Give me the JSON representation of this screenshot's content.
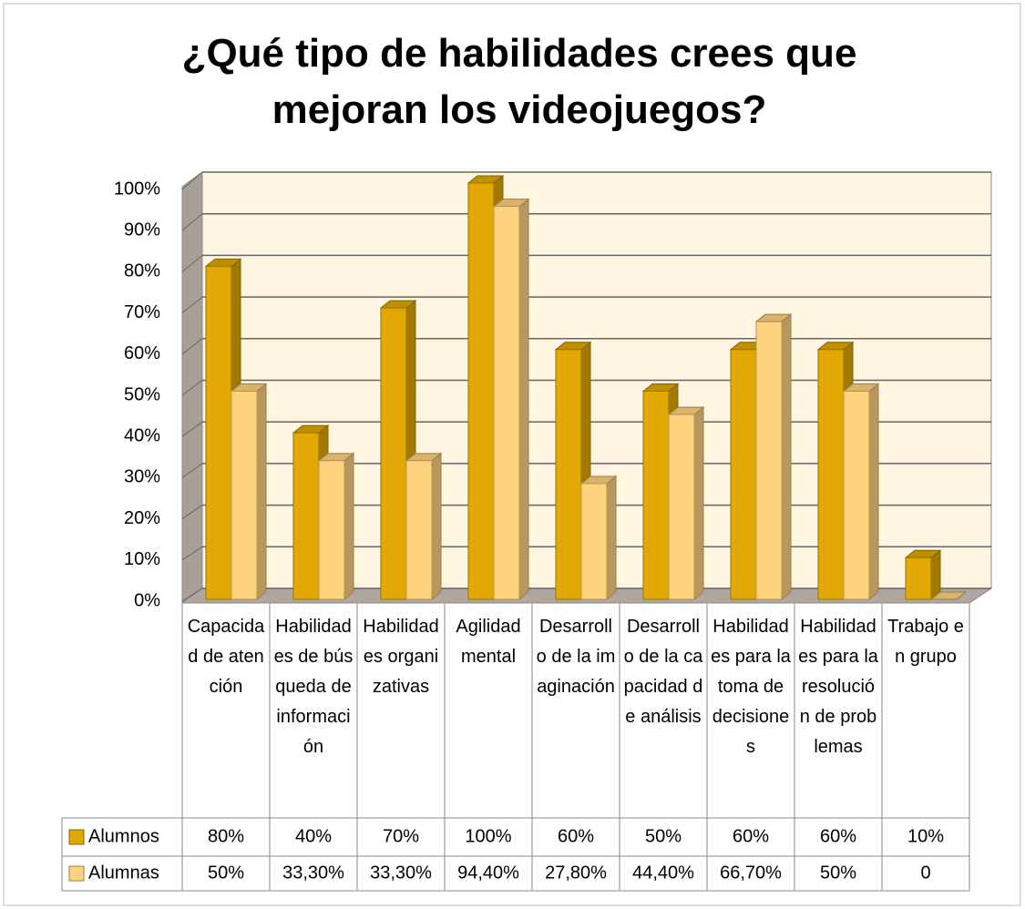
{
  "chart_data": {
    "type": "bar3d",
    "title": "¿Qué tipo de habilidades crees que mejoran los videojuegos?",
    "categories": [
      "Capacidad de atención",
      "Habilidades de búsqueda de información",
      "Habilidades organizativas",
      "Agilidad mental",
      "Desarrollo de la imaginación",
      "Desarrollo de la capacidad de análisis",
      "Habilidades para la toma de decisiones",
      "Habilidades para la resolución de problemas",
      "Trabajo en grupo"
    ],
    "series": [
      {
        "name": "Alumnos",
        "color": "#e0a800",
        "values": [
          80,
          40,
          70,
          100,
          60,
          50,
          60,
          60,
          10
        ],
        "value_labels": [
          "80%",
          "40%",
          "70%",
          "100%",
          "60%",
          "50%",
          "60%",
          "60%",
          "10%"
        ]
      },
      {
        "name": "Alumnas",
        "color": "#ffd27f",
        "values": [
          50,
          33.3,
          33.3,
          94.4,
          27.8,
          44.4,
          66.7,
          50,
          0
        ],
        "value_labels": [
          "50%",
          "33,30%",
          "33,30%",
          "94,40%",
          "27,80%",
          "44,40%",
          "66,70%",
          "50%",
          "0"
        ]
      }
    ],
    "ylim": [
      0,
      100
    ],
    "yticks": [
      {
        "value": 0,
        "label": "0%"
      },
      {
        "value": 10,
        "label": "10%"
      },
      {
        "value": 20,
        "label": "20%"
      },
      {
        "value": 30,
        "label": "30%"
      },
      {
        "value": 40,
        "label": "40%"
      },
      {
        "value": 50,
        "label": "50%"
      },
      {
        "value": 60,
        "label": "60%"
      },
      {
        "value": 70,
        "label": "70%"
      },
      {
        "value": 80,
        "label": "80%"
      },
      {
        "value": 90,
        "label": "90%"
      },
      {
        "value": 100,
        "label": "100%"
      }
    ],
    "grid": true
  }
}
